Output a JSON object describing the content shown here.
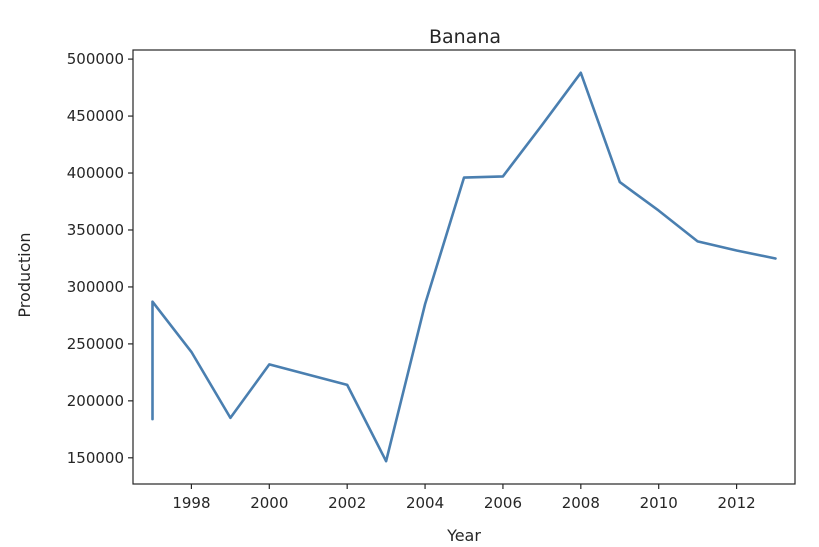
{
  "chart_data": {
    "type": "line",
    "title": "Banana",
    "xlabel": "Year",
    "ylabel": "Production",
    "xlim": [
      1996.5,
      2013.5
    ],
    "ylim": [
      127000,
      508000
    ],
    "grid": false,
    "line_color": "#4a7fb0",
    "x_ticks": [
      1998,
      2000,
      2002,
      2004,
      2006,
      2008,
      2010,
      2012
    ],
    "x_tick_labels": [
      "1998",
      "2000",
      "2002",
      "2004",
      "2006",
      "2008",
      "2010",
      "2012"
    ],
    "y_ticks": [
      150000,
      200000,
      250000,
      300000,
      350000,
      400000,
      450000,
      500000
    ],
    "y_tick_labels": [
      "150000",
      "200000",
      "250000",
      "300000",
      "350000",
      "400000",
      "450000",
      "500000"
    ],
    "series": [
      {
        "x": [
          1997,
          1997,
          1998,
          1999,
          2000,
          2001,
          2002,
          2003,
          2004,
          2005,
          2006,
          2007,
          2008,
          2009,
          2010,
          2011,
          2012,
          2013
        ],
        "y": [
          184000,
          287000,
          243000,
          185000,
          232000,
          223000,
          214000,
          147000,
          285000,
          396000,
          397000,
          442000,
          488000,
          392000,
          367000,
          340000,
          332000,
          325000
        ]
      }
    ]
  }
}
